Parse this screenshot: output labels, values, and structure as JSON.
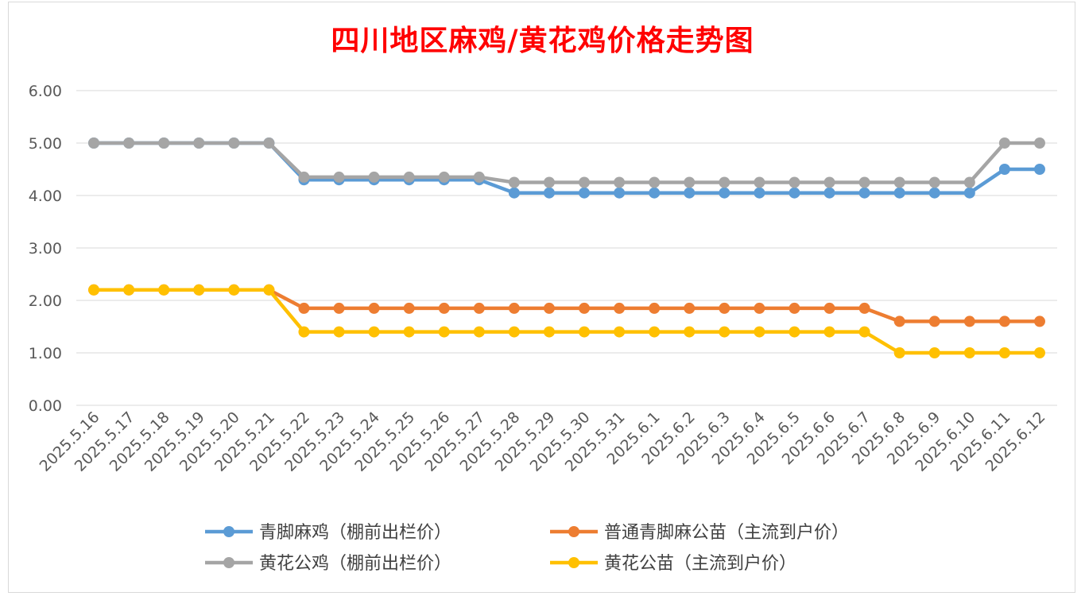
{
  "chart_data": {
    "type": "line",
    "title": "四川地区麻鸡/黄花鸡价格走势图",
    "xlabel": "",
    "ylabel": "",
    "ylim": [
      0,
      6
    ],
    "yticks": [
      "0.00",
      "1.00",
      "2.00",
      "3.00",
      "4.00",
      "5.00",
      "6.00"
    ],
    "grid": true,
    "legend_position": "bottom",
    "categories": [
      "2025.5.16",
      "2025.5.17",
      "2025.5.18",
      "2025.5.19",
      "2025.5.20",
      "2025.5.21",
      "2025.5.22",
      "2025.5.23",
      "2025.5.24",
      "2025.5.25",
      "2025.5.26",
      "2025.5.27",
      "2025.5.28",
      "2025.5.29",
      "2025.5.30",
      "2025.5.31",
      "2025.6.1",
      "2025.6.2",
      "2025.6.3",
      "2025.6.4",
      "2025.6.5",
      "2025.6.6",
      "2025.6.7",
      "2025.6.8",
      "2025.6.9",
      "2025.6.10",
      "2025.6.11",
      "2025.6.12"
    ],
    "series": [
      {
        "name": "青脚麻鸡（棚前出栏价）",
        "color": "#5b9bd5",
        "values": [
          5.0,
          5.0,
          5.0,
          5.0,
          5.0,
          5.0,
          4.3,
          4.3,
          4.3,
          4.3,
          4.3,
          4.3,
          4.05,
          4.05,
          4.05,
          4.05,
          4.05,
          4.05,
          4.05,
          4.05,
          4.05,
          4.05,
          4.05,
          4.05,
          4.05,
          4.05,
          4.5,
          4.5
        ]
      },
      {
        "name": "普通青脚麻公苗（主流到户价）",
        "color": "#ed7d31",
        "values": [
          2.2,
          2.2,
          2.2,
          2.2,
          2.2,
          2.2,
          1.85,
          1.85,
          1.85,
          1.85,
          1.85,
          1.85,
          1.85,
          1.85,
          1.85,
          1.85,
          1.85,
          1.85,
          1.85,
          1.85,
          1.85,
          1.85,
          1.85,
          1.6,
          1.6,
          1.6,
          1.6,
          1.6
        ]
      },
      {
        "name": "黄花公鸡（棚前出栏价）",
        "color": "#a5a5a5",
        "values": [
          5.0,
          5.0,
          5.0,
          5.0,
          5.0,
          5.0,
          4.35,
          4.35,
          4.35,
          4.35,
          4.35,
          4.35,
          4.25,
          4.25,
          4.25,
          4.25,
          4.25,
          4.25,
          4.25,
          4.25,
          4.25,
          4.25,
          4.25,
          4.25,
          4.25,
          4.25,
          5.0,
          5.0
        ]
      },
      {
        "name": "黄花公苗（主流到户价）",
        "color": "#ffc000",
        "values": [
          2.2,
          2.2,
          2.2,
          2.2,
          2.2,
          2.2,
          1.4,
          1.4,
          1.4,
          1.4,
          1.4,
          1.4,
          1.4,
          1.4,
          1.4,
          1.4,
          1.4,
          1.4,
          1.4,
          1.4,
          1.4,
          1.4,
          1.4,
          1.0,
          1.0,
          1.0,
          1.0,
          1.0
        ]
      }
    ]
  }
}
